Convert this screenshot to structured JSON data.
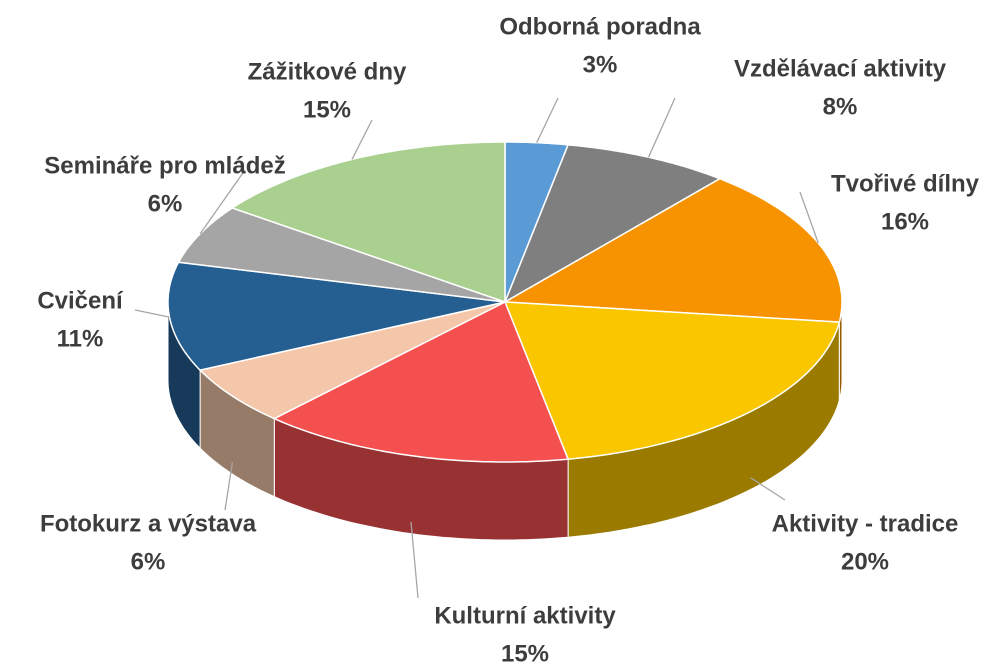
{
  "chart_data": {
    "type": "pie3d",
    "categories": [
      "Odborná poradna",
      "Vzdělávací aktivity",
      "Tvořivé dílny",
      "Aktivity - tradice",
      "Kulturní aktivity",
      "Fotokurz a výstava",
      "Cvičení",
      "Semináře pro mládež",
      "Zážitkové dny"
    ],
    "values": [
      3,
      8,
      16,
      20,
      15,
      6,
      11,
      6,
      15
    ],
    "value_labels": [
      "3%",
      "8%",
      "16%",
      "20%",
      "15%",
      "6%",
      "11%",
      "6%",
      "15%"
    ],
    "colors": [
      "#5b9bd5",
      "#7f7f7f",
      "#f79300",
      "#f9c600",
      "#f55050",
      "#f4c7aa",
      "#255e91",
      "#a5a5a5",
      "#a9d08e"
    ]
  }
}
